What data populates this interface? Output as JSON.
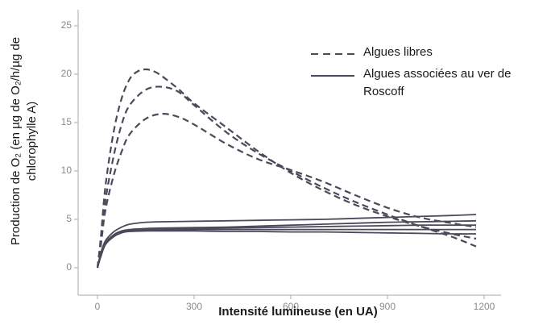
{
  "chart_data": {
    "type": "line",
    "xlabel": "Intensité lumineuse (en UA)",
    "ylabel_line1": "Production de O₂ (en µg de O₂/h/µg de",
    "ylabel_line2": "chlorophylle A)",
    "xlim": [
      0,
      1200
    ],
    "ylim": [
      0,
      25
    ],
    "xticks": [
      0,
      300,
      600,
      900,
      1200
    ],
    "yticks": [
      0,
      5,
      10,
      15,
      20,
      25
    ],
    "grid": false,
    "legend": {
      "placement": "top-right",
      "entries": [
        {
          "label": "Algues libres",
          "style": "dashed"
        },
        {
          "label_line1": "Algues associées au ver de",
          "label_line2": "Roscoff",
          "style": "solid"
        }
      ]
    },
    "series": [
      {
        "group": "Algues libres",
        "style": "dashed",
        "x": [
          0,
          10,
          25,
          50,
          75,
          100,
          125,
          150,
          175,
          200,
          250,
          300,
          400,
          500,
          600,
          700,
          800,
          900,
          1000,
          1100,
          1175
        ],
        "y": [
          0,
          3,
          8.5,
          14,
          17.5,
          19.5,
          20.3,
          20.5,
          20.3,
          19.8,
          18.5,
          17,
          14.5,
          12,
          9.8,
          8,
          6.5,
          5.3,
          4.3,
          3.5,
          3.0
        ]
      },
      {
        "group": "Algues libres",
        "style": "dashed",
        "x": [
          0,
          10,
          25,
          50,
          75,
          100,
          150,
          200,
          250,
          300,
          400,
          500,
          600,
          700,
          800,
          900,
          1000,
          1100,
          1175
        ],
        "y": [
          0,
          2.5,
          7,
          11.5,
          14.8,
          16.8,
          18.4,
          18.7,
          18.2,
          16.8,
          14,
          11.8,
          10,
          8.3,
          6.8,
          5.5,
          4.3,
          3.2,
          2.2
        ]
      },
      {
        "group": "Algues libres",
        "style": "dashed",
        "x": [
          0,
          10,
          25,
          50,
          75,
          100,
          150,
          200,
          250,
          300,
          400,
          500,
          600,
          700,
          800,
          900,
          1000,
          1100,
          1175
        ],
        "y": [
          0,
          2.2,
          6,
          9.5,
          12,
          13.8,
          15.4,
          15.9,
          15.6,
          14.8,
          12.8,
          11.2,
          10.1,
          8.9,
          7.5,
          6.2,
          5.2,
          4.6,
          4.2
        ]
      },
      {
        "group": "Algues associées au ver de Roscoff",
        "style": "solid",
        "x": [
          0,
          10,
          25,
          50,
          75,
          100,
          150,
          200,
          300,
          400,
          500,
          600,
          700,
          800,
          900,
          1000,
          1100,
          1175
        ],
        "y": [
          0,
          1.5,
          2.8,
          3.7,
          4.2,
          4.5,
          4.7,
          4.75,
          4.8,
          4.85,
          4.9,
          4.95,
          5.0,
          5.1,
          5.2,
          5.3,
          5.4,
          5.5
        ]
      },
      {
        "group": "Algues associées au ver de Roscoff",
        "style": "solid",
        "x": [
          0,
          10,
          25,
          50,
          75,
          100,
          150,
          200,
          300,
          400,
          500,
          600,
          700,
          800,
          900,
          1000,
          1100,
          1175
        ],
        "y": [
          0,
          1.3,
          2.6,
          3.4,
          3.8,
          3.95,
          4.05,
          4.1,
          4.15,
          4.2,
          4.3,
          4.4,
          4.5,
          4.6,
          4.7,
          4.75,
          4.8,
          4.85
        ]
      },
      {
        "group": "Algues associées au ver de Roscoff",
        "style": "solid",
        "x": [
          0,
          10,
          25,
          50,
          75,
          100,
          150,
          200,
          300,
          400,
          500,
          600,
          700,
          800,
          900,
          1000,
          1100,
          1175
        ],
        "y": [
          0,
          1.2,
          2.5,
          3.3,
          3.7,
          3.85,
          3.95,
          4.0,
          4.05,
          4.1,
          4.15,
          4.2,
          4.25,
          4.3,
          4.35,
          4.4,
          4.4,
          4.4
        ]
      },
      {
        "group": "Algues associées au ver de Roscoff",
        "style": "solid",
        "x": [
          0,
          10,
          25,
          50,
          75,
          100,
          150,
          200,
          300,
          400,
          500,
          600,
          700,
          800,
          900,
          1000,
          1100,
          1175
        ],
        "y": [
          0,
          1.2,
          2.5,
          3.3,
          3.7,
          3.8,
          3.85,
          3.9,
          3.95,
          3.95,
          3.95,
          3.95,
          3.95,
          3.95,
          3.95,
          3.95,
          3.95,
          3.95
        ]
      },
      {
        "group": "Algues associées au ver de Roscoff",
        "style": "solid",
        "x": [
          0,
          10,
          25,
          50,
          75,
          100,
          150,
          200,
          300,
          400,
          500,
          600,
          700,
          800,
          900,
          1000,
          1100,
          1175
        ],
        "y": [
          0,
          1.1,
          2.4,
          3.2,
          3.6,
          3.75,
          3.8,
          3.8,
          3.8,
          3.75,
          3.75,
          3.7,
          3.7,
          3.65,
          3.6,
          3.55,
          3.5,
          3.5
        ]
      }
    ],
    "colors": {
      "lines": "#4a4a5a",
      "axes": "#aaaaaa",
      "ticks_text": "#8a8a8a"
    }
  }
}
